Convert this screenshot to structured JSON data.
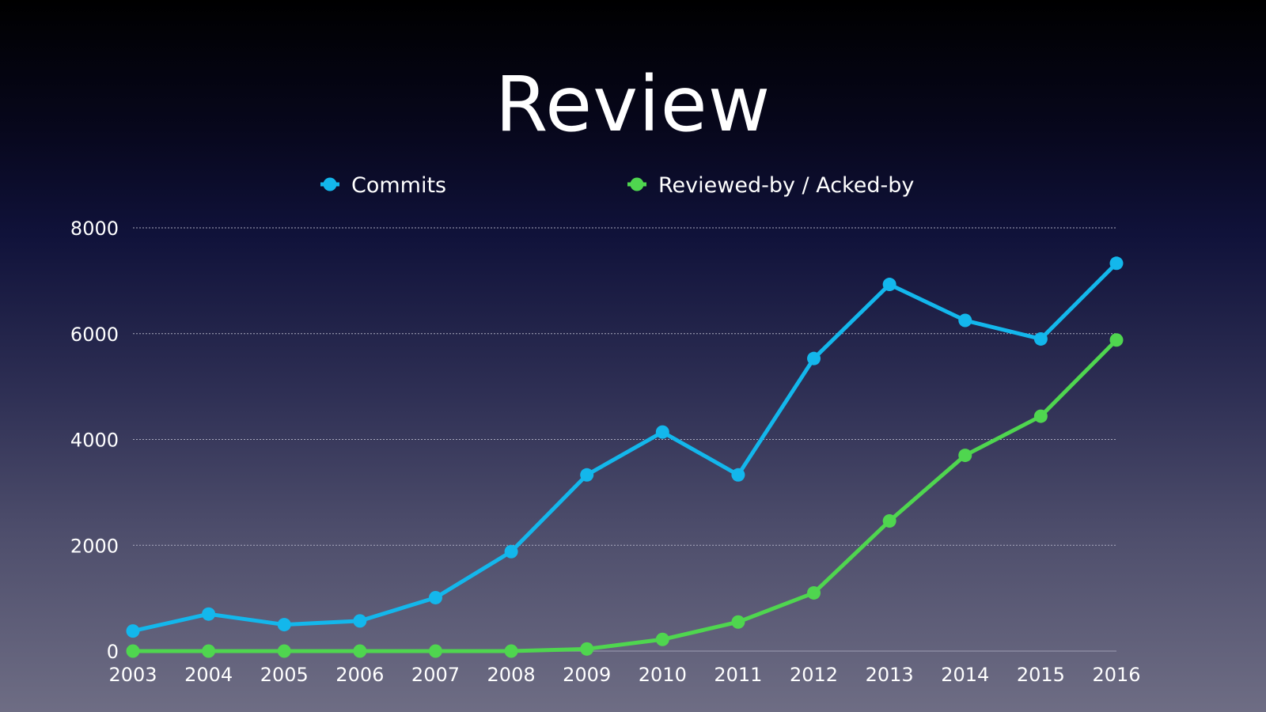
{
  "slide": {
    "title": "Review"
  },
  "chart_data": {
    "type": "line",
    "title": "Review",
    "xlabel": "",
    "ylabel": "",
    "categories": [
      "2003",
      "2004",
      "2005",
      "2006",
      "2007",
      "2008",
      "2009",
      "2010",
      "2011",
      "2012",
      "2013",
      "2014",
      "2015",
      "2016"
    ],
    "ylim": [
      0,
      8000
    ],
    "yticks": [
      0,
      2000,
      4000,
      6000,
      8000
    ],
    "grid": true,
    "legend_position": "top-center",
    "series": [
      {
        "name": "Commits",
        "color": "#13b7ec",
        "values": [
          380,
          700,
          500,
          570,
          1010,
          1880,
          3330,
          4140,
          3330,
          5530,
          6930,
          6250,
          5900,
          7330
        ]
      },
      {
        "name": "Reviewed-by / Acked-by",
        "color": "#4fd64f",
        "values": [
          0,
          0,
          0,
          0,
          0,
          0,
          40,
          220,
          550,
          1100,
          2460,
          3700,
          4440,
          5880
        ]
      }
    ]
  }
}
